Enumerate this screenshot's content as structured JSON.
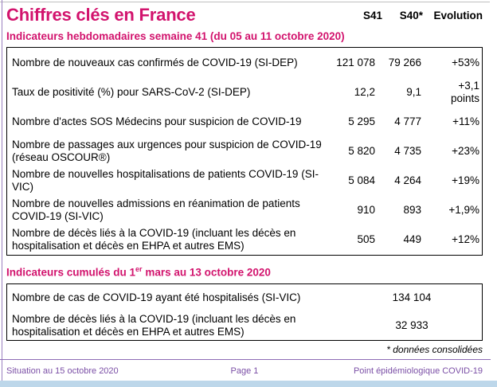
{
  "header": {
    "title": "Chiffres clés en France",
    "col_s41": "S41",
    "col_s40": "S40*",
    "col_evolution": "Evolution"
  },
  "weekly": {
    "heading": "Indicateurs hebdomadaires semaine 41 (du 05 au 11 octobre 2020)",
    "rows": [
      {
        "label": "Nombre de nouveaux cas confirmés de COVID-19 (SI-DEP)",
        "s41": "121 078",
        "s40": "79 266",
        "evolution": "+53%"
      },
      {
        "label": "Taux de positivité (%) pour SARS-CoV-2 (SI-DEP)",
        "s41": "12,2",
        "s40": "9,1",
        "evolution": "+3,1 points"
      },
      {
        "label": "Nombre d'actes SOS Médecins pour suspicion de COVID-19",
        "s41": "5 295",
        "s40": "4 777",
        "evolution": "+11%"
      },
      {
        "label": "Nombre de passages aux urgences pour suspicion de COVID-19 (réseau OSCOUR®)",
        "s41": "5 820",
        "s40": "4 735",
        "evolution": "+23%"
      },
      {
        "label": "Nombre de nouvelles hospitalisations de patients COVID-19 (SI-VIC)",
        "s41": "5 084",
        "s40": "4 264",
        "evolution": "+19%"
      },
      {
        "label": "Nombre de nouvelles admissions en réanimation de patients COVID-19 (SI-VIC)",
        "s41": "910",
        "s40": "893",
        "evolution": "+1,9%"
      },
      {
        "label": "Nombre de décès liés à la COVID-19 (incluant les décès en hospitalisation et décès en EHPA et autres EMS)",
        "s41": "505",
        "s40": "449",
        "evolution": "+12%"
      }
    ]
  },
  "cumulative": {
    "heading_prefix": "Indicateurs cumulés du 1",
    "heading_superscript": "er",
    "heading_suffix": " mars au 13 octobre 2020",
    "rows": [
      {
        "label": "Nombre de cas de COVID-19 ayant été hospitalisés (SI-VIC)",
        "value": "134 104"
      },
      {
        "label": "Nombre de décès liés à la COVID-19 (incluant les décès en hospitalisation et décès en EHPA et autres EMS)",
        "value": "32 933"
      }
    ]
  },
  "footnote": "* données consolidées",
  "footer": {
    "left": "Situation au 15 octobre 2020",
    "center": "Page 1",
    "right": "Point épidémiologique COVID-19"
  },
  "colors": {
    "accent_magenta": "#d2136d",
    "footer_purple": "#7b4fa6",
    "table_border": "#000000",
    "divider_purple": "#8d6cb5",
    "bottom_band_blue": "#bdd7ea"
  }
}
